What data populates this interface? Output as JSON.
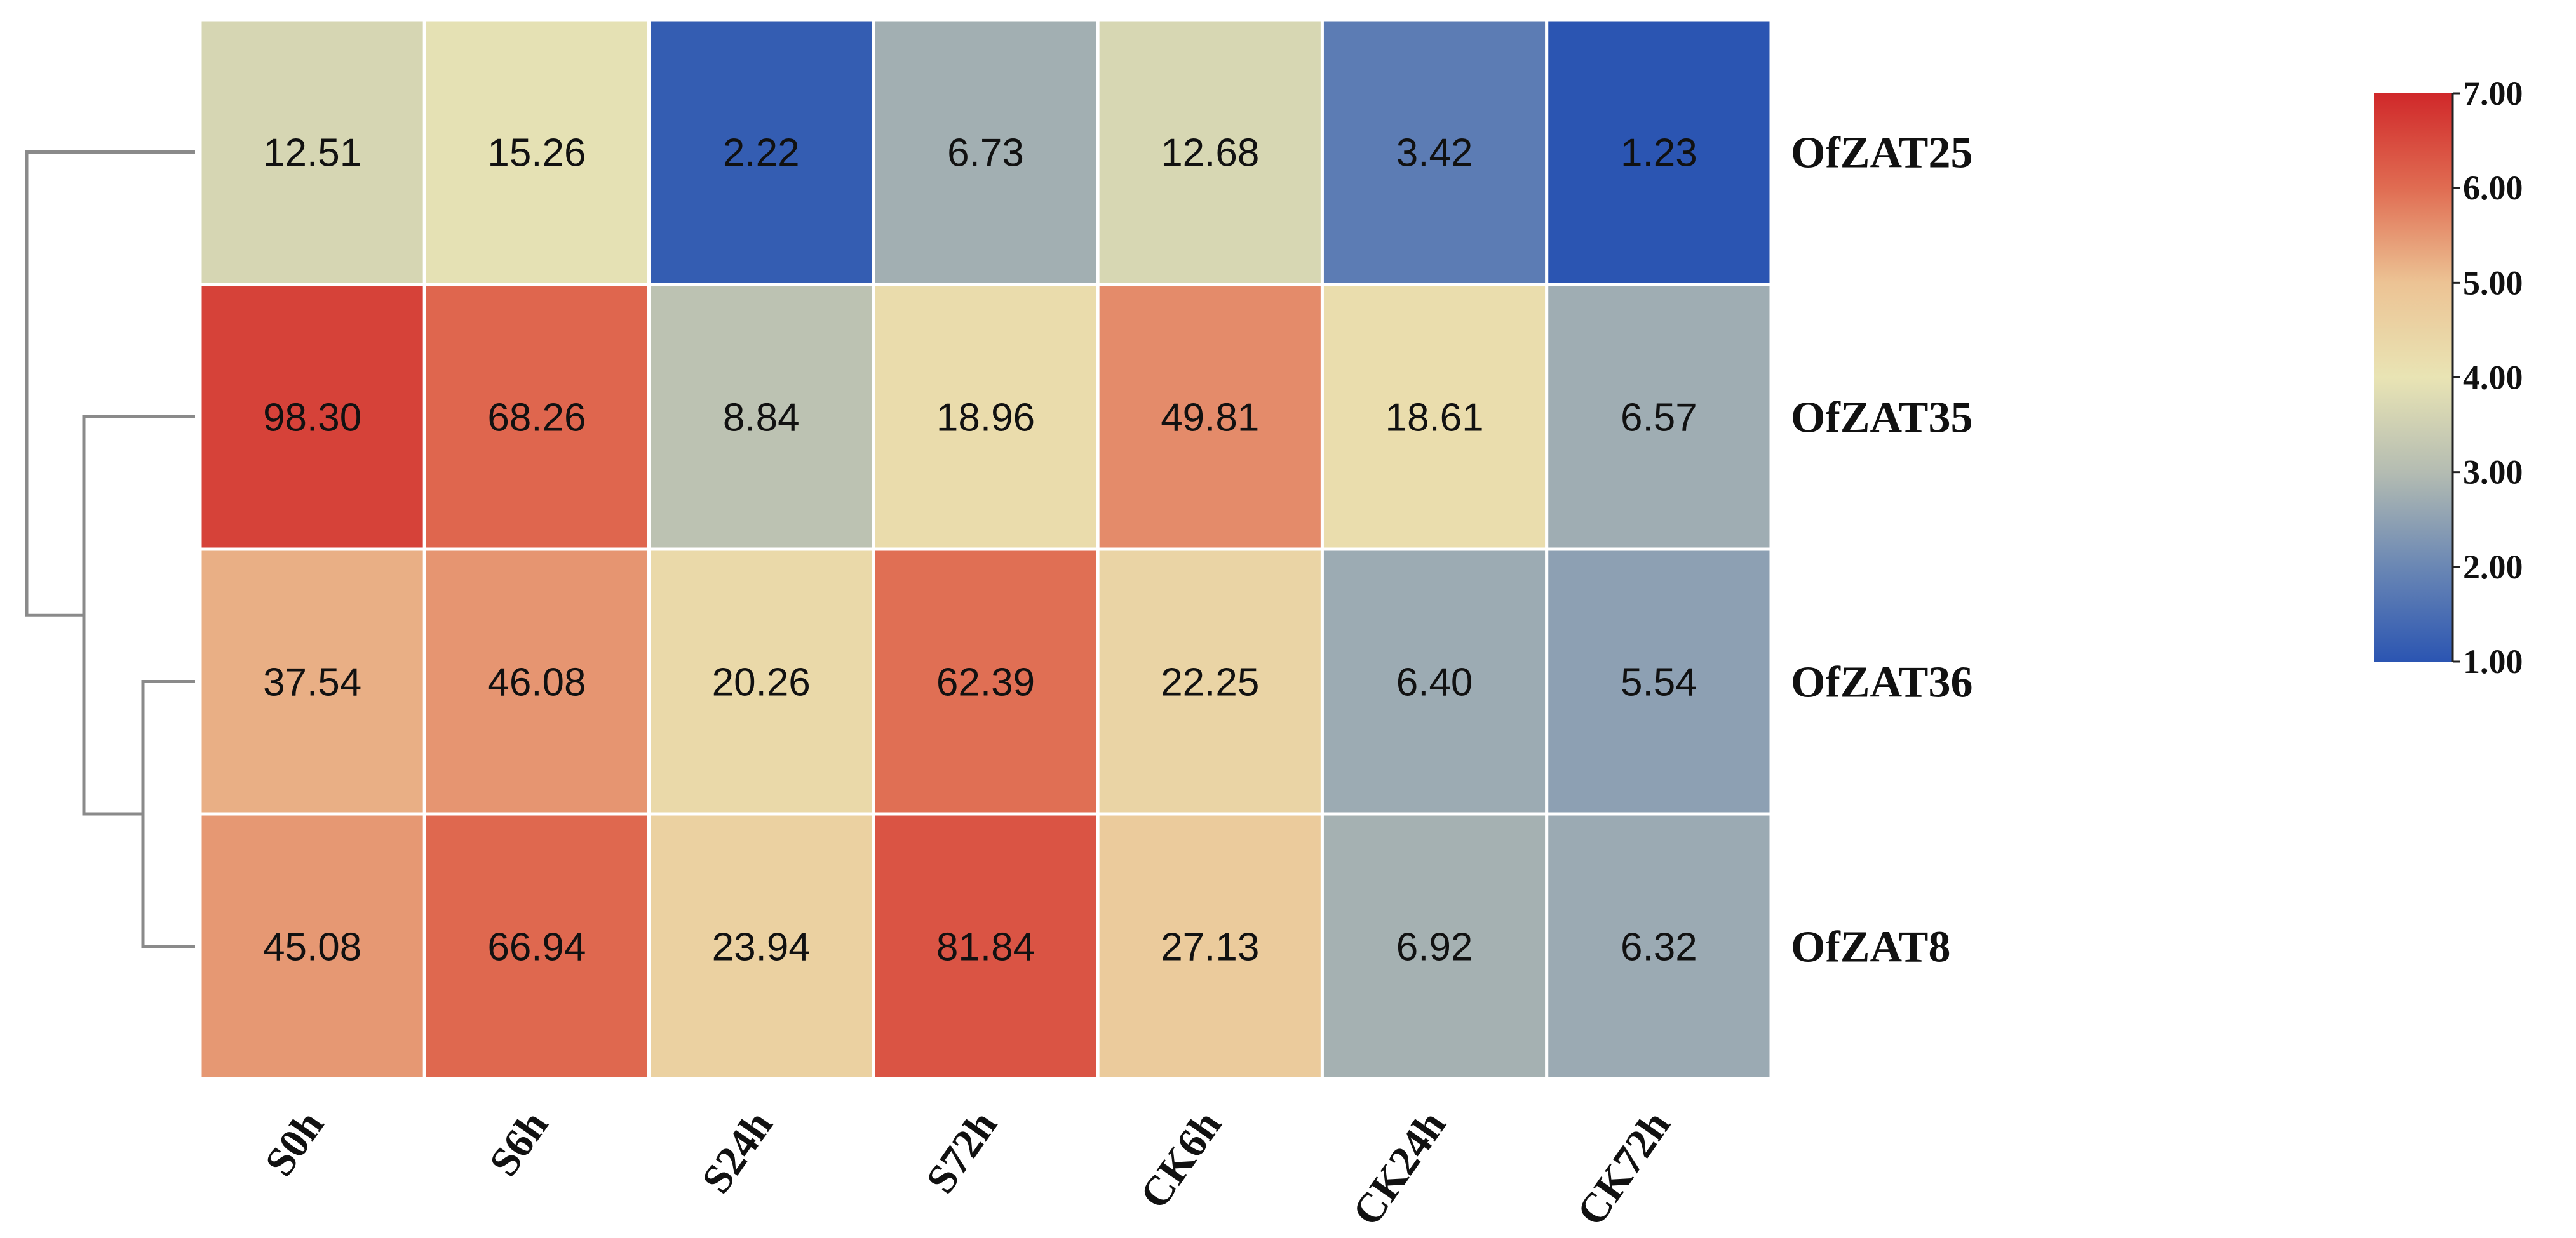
{
  "chart_data": {
    "type": "heatmap",
    "title": "",
    "columns": [
      "S0h",
      "S6h",
      "S24h",
      "S72h",
      "CK6h",
      "CK24h",
      "CK72h"
    ],
    "rows": [
      "OfZAT25",
      "OfZAT35",
      "OfZAT36",
      "OfZAT8"
    ],
    "values": [
      [
        12.51,
        15.26,
        2.22,
        6.73,
        12.68,
        3.42,
        1.23
      ],
      [
        98.3,
        68.26,
        8.84,
        18.96,
        49.81,
        18.61,
        6.57
      ],
      [
        37.54,
        46.08,
        20.26,
        62.39,
        22.25,
        6.4,
        5.54
      ],
      [
        45.08,
        66.94,
        23.94,
        81.84,
        27.13,
        6.92,
        6.32
      ]
    ],
    "value_labels": [
      [
        "12.51",
        "15.26",
        "2.22",
        "6.73",
        "12.68",
        "3.42",
        "1.23"
      ],
      [
        "98.30",
        "68.26",
        "8.84",
        "18.96",
        "49.81",
        "18.61",
        "6.57"
      ],
      [
        "37.54",
        "46.08",
        "20.26",
        "62.39",
        "22.25",
        "6.40",
        "5.54"
      ],
      [
        "45.08",
        "66.94",
        "23.94",
        "81.84",
        "27.13",
        "6.92",
        "6.32"
      ]
    ],
    "color_scale": {
      "transform": "log2",
      "range": [
        1.0,
        7.0
      ],
      "ticks": [
        "7.00",
        "6.00",
        "5.00",
        "4.00",
        "3.00",
        "2.00",
        "1.00"
      ],
      "tick_values": [
        7,
        6,
        5,
        4,
        3,
        2,
        1
      ],
      "colors": [
        "#2b55b2",
        "#6a87b4",
        "#b4bcb2",
        "#e9e4b4",
        "#ecc394",
        "#e06c52",
        "#d0282a"
      ],
      "legend_placement": "right"
    },
    "row_dendrogram": "left"
  }
}
